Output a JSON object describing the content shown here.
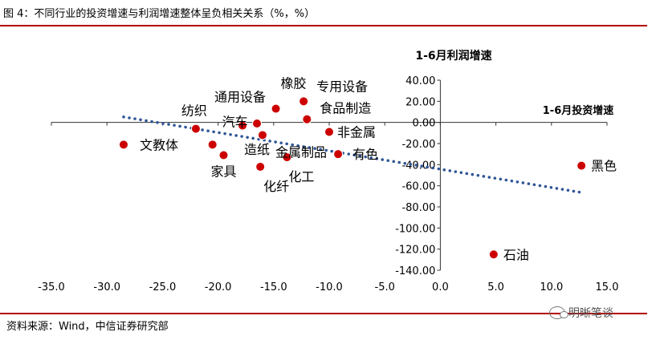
{
  "header": {
    "title": "图 4：不同行业的投资增速与利润增速整体呈负相关关系（%，%）"
  },
  "footer": {
    "source": "资料来源：Wind，中信证券研究部",
    "watermark": "明晰笔谈"
  },
  "chart_data": {
    "type": "scatter",
    "x_title": "1-6月投资增速",
    "y_title": "1-6月利润增速",
    "xlim": [
      -35,
      15
    ],
    "ylim": [
      -140,
      40
    ],
    "x_ticks": [
      "-35.0",
      "-30.0",
      "-25.0",
      "-20.0",
      "-15.0",
      "-10.0",
      "-5.0",
      "0.0",
      "5.0",
      "10.0",
      "15.0"
    ],
    "y_ticks": [
      "40.00",
      "20.00",
      "0.00",
      "-20.00",
      "-40.00",
      "-60.00",
      "-80.00",
      "-100.00",
      "-120.00",
      "-140.00"
    ],
    "grid": false,
    "legend": "none",
    "trendline": {
      "style": "dotted",
      "x": [
        -28.5,
        12.5
      ],
      "y": [
        5.2,
        -66.0
      ]
    },
    "point_color": "#cc0000",
    "trend_color": "#2f5597",
    "points": [
      {
        "label": "文教体",
        "x": -28.5,
        "y": -21
      },
      {
        "label": "纺织",
        "x": -22.0,
        "y": -6
      },
      {
        "label": "汽车",
        "x": -20.5,
        "y": -21
      },
      {
        "label": "家具",
        "x": -19.5,
        "y": -31
      },
      {
        "label": "通用设备",
        "x": -17.8,
        "y": -3
      },
      {
        "label": "造纸",
        "x": -16.5,
        "y": -1
      },
      {
        "label": "化纤",
        "x": -16.2,
        "y": -42
      },
      {
        "label": "金属制品",
        "x": -16.0,
        "y": -12
      },
      {
        "label": "橡胶",
        "x": -14.8,
        "y": 13
      },
      {
        "label": "化工",
        "x": -13.8,
        "y": -33
      },
      {
        "label": "专用设备",
        "x": -12.3,
        "y": 20
      },
      {
        "label": "食品制造",
        "x": -12.0,
        "y": 3
      },
      {
        "label": "非金属",
        "x": -10.0,
        "y": -9
      },
      {
        "label": "有色",
        "x": -9.2,
        "y": -30
      },
      {
        "label": "黑色",
        "x": 12.7,
        "y": -41
      },
      {
        "label": "石油",
        "x": 4.8,
        "y": -125
      }
    ]
  }
}
